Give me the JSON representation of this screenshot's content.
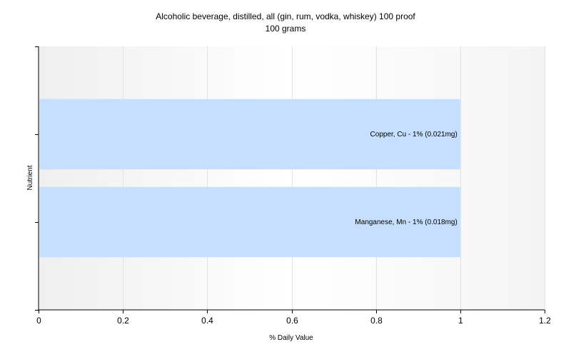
{
  "chart_data": {
    "type": "bar",
    "orientation": "horizontal",
    "title": "Alcoholic beverage, distilled, all (gin, rum, vodka, whiskey) 100 proof",
    "subtitle": "100 grams",
    "xlabel": "% Daily Value",
    "ylabel": "Nutrient",
    "xlim": [
      0,
      1.2
    ],
    "xticks": [
      "0",
      "0.2",
      "0.4",
      "0.6",
      "0.8",
      "1",
      "1.2"
    ],
    "categories": [
      "Copper, Cu",
      "Manganese, Mn"
    ],
    "values": [
      1,
      1
    ],
    "bar_labels": [
      "Copper, Cu - 1% (0.021mg)",
      "Manganese, Mn - 1% (0.018mg)"
    ],
    "grid": true,
    "bar_color": "#c6dfff"
  }
}
